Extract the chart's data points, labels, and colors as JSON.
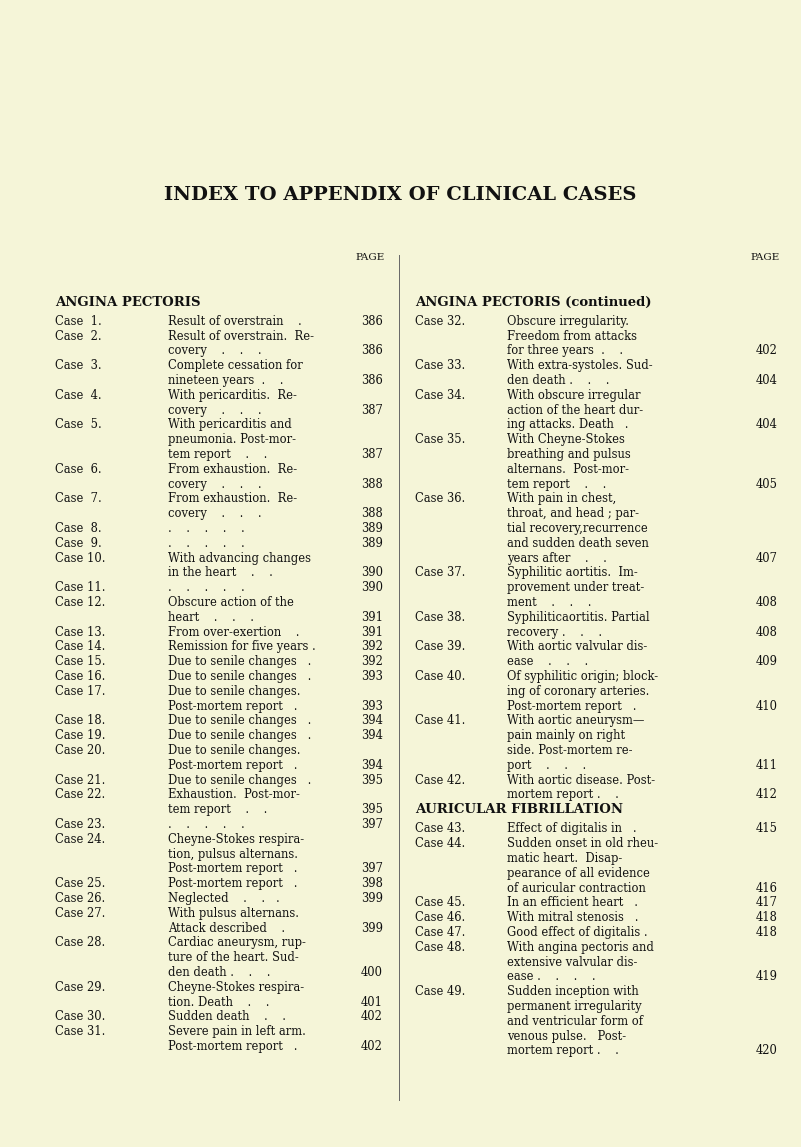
{
  "bg_color": "#F5F5D8",
  "title": "INDEX TO APPENDIX OF CLINICAL CASES",
  "title_fontsize": 14,
  "fig_width": 8.01,
  "fig_height": 11.47,
  "dpi": 100,
  "left_col_entries": [
    {
      "case": "ANGINA PECTORIS",
      "desc": "",
      "page": "",
      "section": true
    },
    {
      "case": "Case  1.",
      "desc": "Result of overstrain    .",
      "page": "386"
    },
    {
      "case": "Case  2.",
      "desc": "Result of overstrain.  Re-",
      "page": ""
    },
    {
      "case": "",
      "desc": "covery    .    .    .",
      "page": "386"
    },
    {
      "case": "Case  3.",
      "desc": "Complete cessation for",
      "page": ""
    },
    {
      "case": "",
      "desc": "nineteen years  .    .",
      "page": "386"
    },
    {
      "case": "Case  4.",
      "desc": "With pericarditis.  Re-",
      "page": ""
    },
    {
      "case": "",
      "desc": "covery    .    .    .",
      "page": "387"
    },
    {
      "case": "Case  5.",
      "desc": "With pericarditis and",
      "page": ""
    },
    {
      "case": "",
      "desc": "pneumonia. Post-mor-",
      "page": ""
    },
    {
      "case": "",
      "desc": "tem report    .    .",
      "page": "387"
    },
    {
      "case": "Case  6.",
      "desc": "From exhaustion.  Re-",
      "page": ""
    },
    {
      "case": "",
      "desc": "covery    .    .    .",
      "page": "388"
    },
    {
      "case": "Case  7.",
      "desc": "From exhaustion.  Re-",
      "page": ""
    },
    {
      "case": "",
      "desc": "covery    .    .    .",
      "page": "388"
    },
    {
      "case": "Case  8.",
      "desc": ".    .    .    .    .",
      "page": "389"
    },
    {
      "case": "Case  9.",
      "desc": ".    .    .    .    .",
      "page": "389"
    },
    {
      "case": "Case 10.",
      "desc": "With advancing changes",
      "page": ""
    },
    {
      "case": "",
      "desc": "in the heart    .    .",
      "page": "390"
    },
    {
      "case": "Case 11.",
      "desc": ".    .    .    .    .",
      "page": "390"
    },
    {
      "case": "Case 12.",
      "desc": "Obscure action of the",
      "page": ""
    },
    {
      "case": "",
      "desc": "heart    .    .    .",
      "page": "391"
    },
    {
      "case": "Case 13.",
      "desc": "From over-exertion    .",
      "page": "391"
    },
    {
      "case": "Case 14.",
      "desc": "Remission for five years .",
      "page": "392"
    },
    {
      "case": "Case 15.",
      "desc": "Due to senile changes   .",
      "page": "392"
    },
    {
      "case": "Case 16.",
      "desc": "Due to senile changes   .",
      "page": "393"
    },
    {
      "case": "Case 17.",
      "desc": "Due to senile changes.",
      "page": ""
    },
    {
      "case": "",
      "desc": "Post-mortem report   .",
      "page": "393"
    },
    {
      "case": "Case 18.",
      "desc": "Due to senile changes   .",
      "page": "394"
    },
    {
      "case": "Case 19.",
      "desc": "Due to senile changes   .",
      "page": "394"
    },
    {
      "case": "Case 20.",
      "desc": "Due to senile changes.",
      "page": ""
    },
    {
      "case": "",
      "desc": "Post-mortem report   .",
      "page": "394"
    },
    {
      "case": "Case 21.",
      "desc": "Due to senile changes   .",
      "page": "395"
    },
    {
      "case": "Case 22.",
      "desc": "Exhaustion.  Post-mor-",
      "page": ""
    },
    {
      "case": "",
      "desc": "tem report    .    .",
      "page": "395"
    },
    {
      "case": "Case 23.",
      "desc": ".    .    .    .    .",
      "page": "397"
    },
    {
      "case": "Case 24.",
      "desc": "Cheyne-Stokes respira-",
      "page": ""
    },
    {
      "case": "",
      "desc": "tion, pulsus alternans.",
      "page": ""
    },
    {
      "case": "",
      "desc": "Post-mortem report   .",
      "page": "397"
    },
    {
      "case": "Case 25.",
      "desc": "Post-mortem report   .",
      "page": "398"
    },
    {
      "case": "Case 26.",
      "desc": "Neglected    .    .   .",
      "page": "399"
    },
    {
      "case": "Case 27.",
      "desc": "With pulsus alternans.",
      "page": ""
    },
    {
      "case": "",
      "desc": "Attack described    .",
      "page": "399"
    },
    {
      "case": "Case 28.",
      "desc": "Cardiac aneurysm, rup-",
      "page": ""
    },
    {
      "case": "",
      "desc": "ture of the heart. Sud-",
      "page": ""
    },
    {
      "case": "",
      "desc": "den death .    .    .",
      "page": "400"
    },
    {
      "case": "Case 29.",
      "desc": "Cheyne-Stokes respira-",
      "page": ""
    },
    {
      "case": "",
      "desc": "tion. Death    .    .",
      "page": "401"
    },
    {
      "case": "Case 30.",
      "desc": "Sudden death    .    .",
      "page": "402"
    },
    {
      "case": "Case 31.",
      "desc": "Severe pain in left arm.",
      "page": ""
    },
    {
      "case": "",
      "desc": "Post-mortem report   .",
      "page": "402"
    }
  ],
  "right_col_entries": [
    {
      "case": "ANGINA PECTORIS (continued)",
      "desc": "",
      "page": "",
      "section": true
    },
    {
      "case": "Case 32.",
      "desc": "Obscure irregularity.",
      "page": ""
    },
    {
      "case": "",
      "desc": "Freedom from attacks",
      "page": ""
    },
    {
      "case": "",
      "desc": "for three years  .    .",
      "page": "402"
    },
    {
      "case": "Case 33.",
      "desc": "With extra-systoles. Sud-",
      "page": ""
    },
    {
      "case": "",
      "desc": "den death .    .    .",
      "page": "404"
    },
    {
      "case": "Case 34.",
      "desc": "With obscure irregular",
      "page": ""
    },
    {
      "case": "",
      "desc": "action of the heart dur-",
      "page": ""
    },
    {
      "case": "",
      "desc": "ing attacks. Death   .",
      "page": "404"
    },
    {
      "case": "Case 35.",
      "desc": "With Cheyne-Stokes",
      "page": ""
    },
    {
      "case": "",
      "desc": "breathing and pulsus",
      "page": ""
    },
    {
      "case": "",
      "desc": "alternans.  Post-mor-",
      "page": ""
    },
    {
      "case": "",
      "desc": "tem report    .    .",
      "page": "405"
    },
    {
      "case": "Case 36.",
      "desc": "With pain in chest,",
      "page": ""
    },
    {
      "case": "",
      "desc": "throat, and head ; par-",
      "page": ""
    },
    {
      "case": "",
      "desc": "tial recovery,recurrence",
      "page": ""
    },
    {
      "case": "",
      "desc": "and sudden death seven",
      "page": ""
    },
    {
      "case": "",
      "desc": "years after    .    .",
      "page": "407"
    },
    {
      "case": "Case 37.",
      "desc": "Syphilitic aortitis.  Im-",
      "page": ""
    },
    {
      "case": "",
      "desc": "provement under treat-",
      "page": ""
    },
    {
      "case": "",
      "desc": "ment    .    .    .",
      "page": "408"
    },
    {
      "case": "Case 38.",
      "desc": "Syphiliticaortitis. Partial",
      "page": ""
    },
    {
      "case": "",
      "desc": "recovery .    .    .",
      "page": "408"
    },
    {
      "case": "Case 39.",
      "desc": "With aortic valvular dis-",
      "page": ""
    },
    {
      "case": "",
      "desc": "ease    .    .    .",
      "page": "409"
    },
    {
      "case": "Case 40.",
      "desc": "Of syphilitic origin; block-",
      "page": ""
    },
    {
      "case": "",
      "desc": "ing of coronary arteries.",
      "page": ""
    },
    {
      "case": "",
      "desc": "Post-mortem report   .",
      "page": "410"
    },
    {
      "case": "Case 41.",
      "desc": "With aortic aneurysm—",
      "page": ""
    },
    {
      "case": "",
      "desc": "pain mainly on right",
      "page": ""
    },
    {
      "case": "",
      "desc": "side. Post-mortem re-",
      "page": ""
    },
    {
      "case": "",
      "desc": "port    .    .    .",
      "page": "411"
    },
    {
      "case": "Case 42.",
      "desc": "With aortic disease. Post-",
      "page": ""
    },
    {
      "case": "",
      "desc": "mortem report .    .",
      "page": "412"
    },
    {
      "case": "AURICULAR FIBRILLATION",
      "desc": "",
      "page": "",
      "section": true
    },
    {
      "case": "Case 43.",
      "desc": "Effect of digitalis in   .",
      "page": "415"
    },
    {
      "case": "Case 44.",
      "desc": "Sudden onset in old rheu-",
      "page": ""
    },
    {
      "case": "",
      "desc": "matic heart.  Disap-",
      "page": ""
    },
    {
      "case": "",
      "desc": "pearance of all evidence",
      "page": ""
    },
    {
      "case": "",
      "desc": "of auricular contraction",
      "page": "416"
    },
    {
      "case": "Case 45.",
      "desc": "In an efficient heart   .",
      "page": "417"
    },
    {
      "case": "Case 46.",
      "desc": "With mitral stenosis   .",
      "page": "418"
    },
    {
      "case": "Case 47.",
      "desc": "Good effect of digitalis .",
      "page": "418"
    },
    {
      "case": "Case 48.",
      "desc": "With angina pectoris and",
      "page": ""
    },
    {
      "case": "",
      "desc": "extensive valvular dis-",
      "page": ""
    },
    {
      "case": "",
      "desc": "ease .    .    .    .",
      "page": "419"
    },
    {
      "case": "Case 49.",
      "desc": "Sudden inception with",
      "page": ""
    },
    {
      "case": "",
      "desc": "permanent irregularity",
      "page": ""
    },
    {
      "case": "",
      "desc": "and ventricular form of",
      "page": ""
    },
    {
      "case": "",
      "desc": "venous pulse.   Post-",
      "page": ""
    },
    {
      "case": "",
      "desc": "mortem report .    .",
      "page": "420"
    }
  ]
}
